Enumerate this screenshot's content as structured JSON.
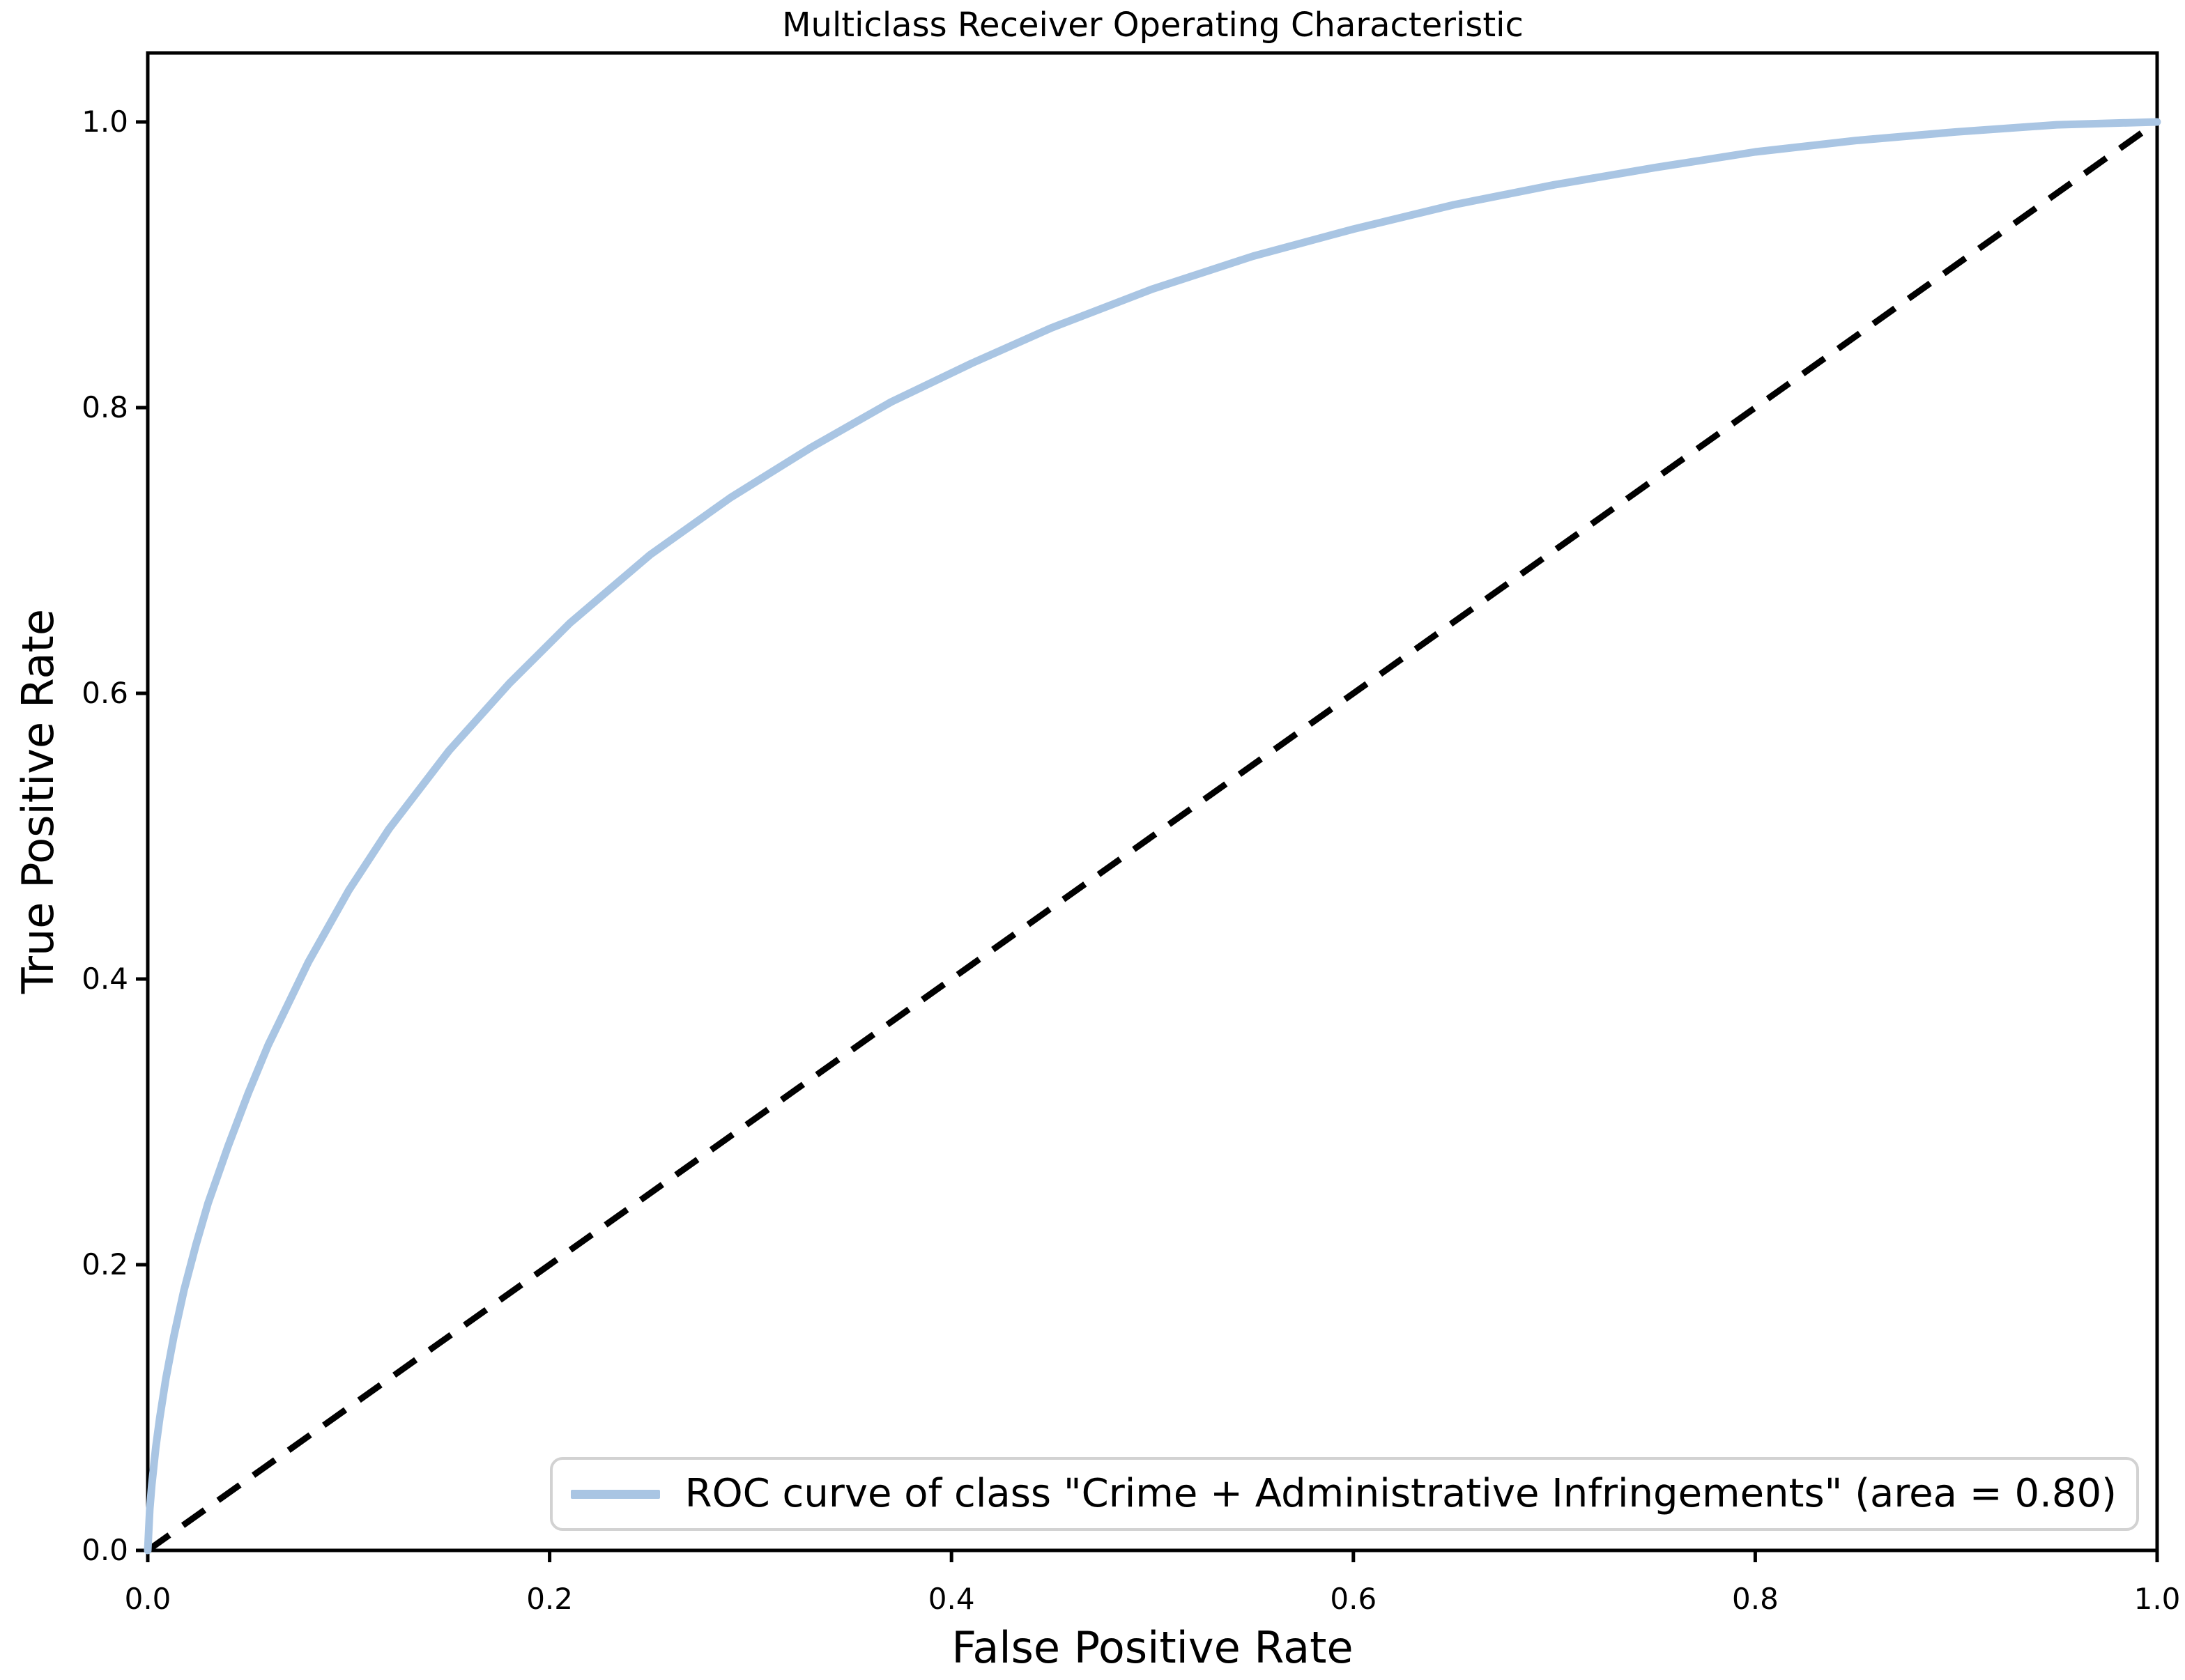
{
  "figure": {
    "title": "Multiclass Receiver Operating Characteristic",
    "xlabel": "False Positive Rate",
    "ylabel": "True Positive Rate",
    "x_tick_labels": [
      "0.0",
      "0.2",
      "0.4",
      "0.6",
      "0.8",
      "1.0"
    ],
    "y_tick_labels": [
      "0.0",
      "0.2",
      "0.4",
      "0.6",
      "0.8",
      "1.0"
    ],
    "legend": {
      "label": "ROC curve of class \"Crime + Administrative Infringements\" (area = 0.80)",
      "swatch_color": "#a9c5e3",
      "border_color": "#d2d2d2",
      "position": "lower right"
    }
  },
  "chart_data": {
    "type": "line",
    "title": "Multiclass Receiver Operating Characteristic",
    "xlabel": "False Positive Rate",
    "ylabel": "True Positive Rate",
    "xlim": [
      0.0,
      1.0
    ],
    "ylim": [
      0.0,
      1.05
    ],
    "x_ticks": [
      0.0,
      0.2,
      0.4,
      0.6,
      0.8,
      1.0
    ],
    "y_ticks": [
      0.0,
      0.2,
      0.4,
      0.6,
      0.8,
      1.0
    ],
    "grid": false,
    "legend_position": "lower right",
    "series": [
      {
        "name": "ROC curve of class \"Crime + Administrative Infringements\"",
        "area": 0.8,
        "color": "#a9c5e3",
        "line_style": "solid",
        "line_width": 11,
        "x": [
          0.0,
          0.001,
          0.002,
          0.004,
          0.006,
          0.009,
          0.013,
          0.018,
          0.024,
          0.03,
          0.04,
          0.05,
          0.06,
          0.08,
          0.1,
          0.12,
          0.15,
          0.18,
          0.21,
          0.25,
          0.29,
          0.33,
          0.37,
          0.41,
          0.45,
          0.5,
          0.55,
          0.6,
          0.65,
          0.7,
          0.75,
          0.8,
          0.85,
          0.9,
          0.95,
          1.0
        ],
        "y": [
          0.0,
          0.029,
          0.046,
          0.072,
          0.093,
          0.12,
          0.15,
          0.182,
          0.214,
          0.243,
          0.283,
          0.32,
          0.354,
          0.412,
          0.462,
          0.505,
          0.56,
          0.607,
          0.649,
          0.697,
          0.737,
          0.772,
          0.804,
          0.831,
          0.856,
          0.883,
          0.906,
          0.925,
          0.942,
          0.956,
          0.968,
          0.979,
          0.987,
          0.993,
          0.998,
          1.0
        ]
      },
      {
        "name": "chance diagonal",
        "color": "#000000",
        "line_style": "dashed",
        "line_width": 9,
        "dash_pattern": "38 24",
        "x": [
          0.0,
          1.0
        ],
        "y": [
          0.0,
          1.0
        ]
      }
    ]
  }
}
